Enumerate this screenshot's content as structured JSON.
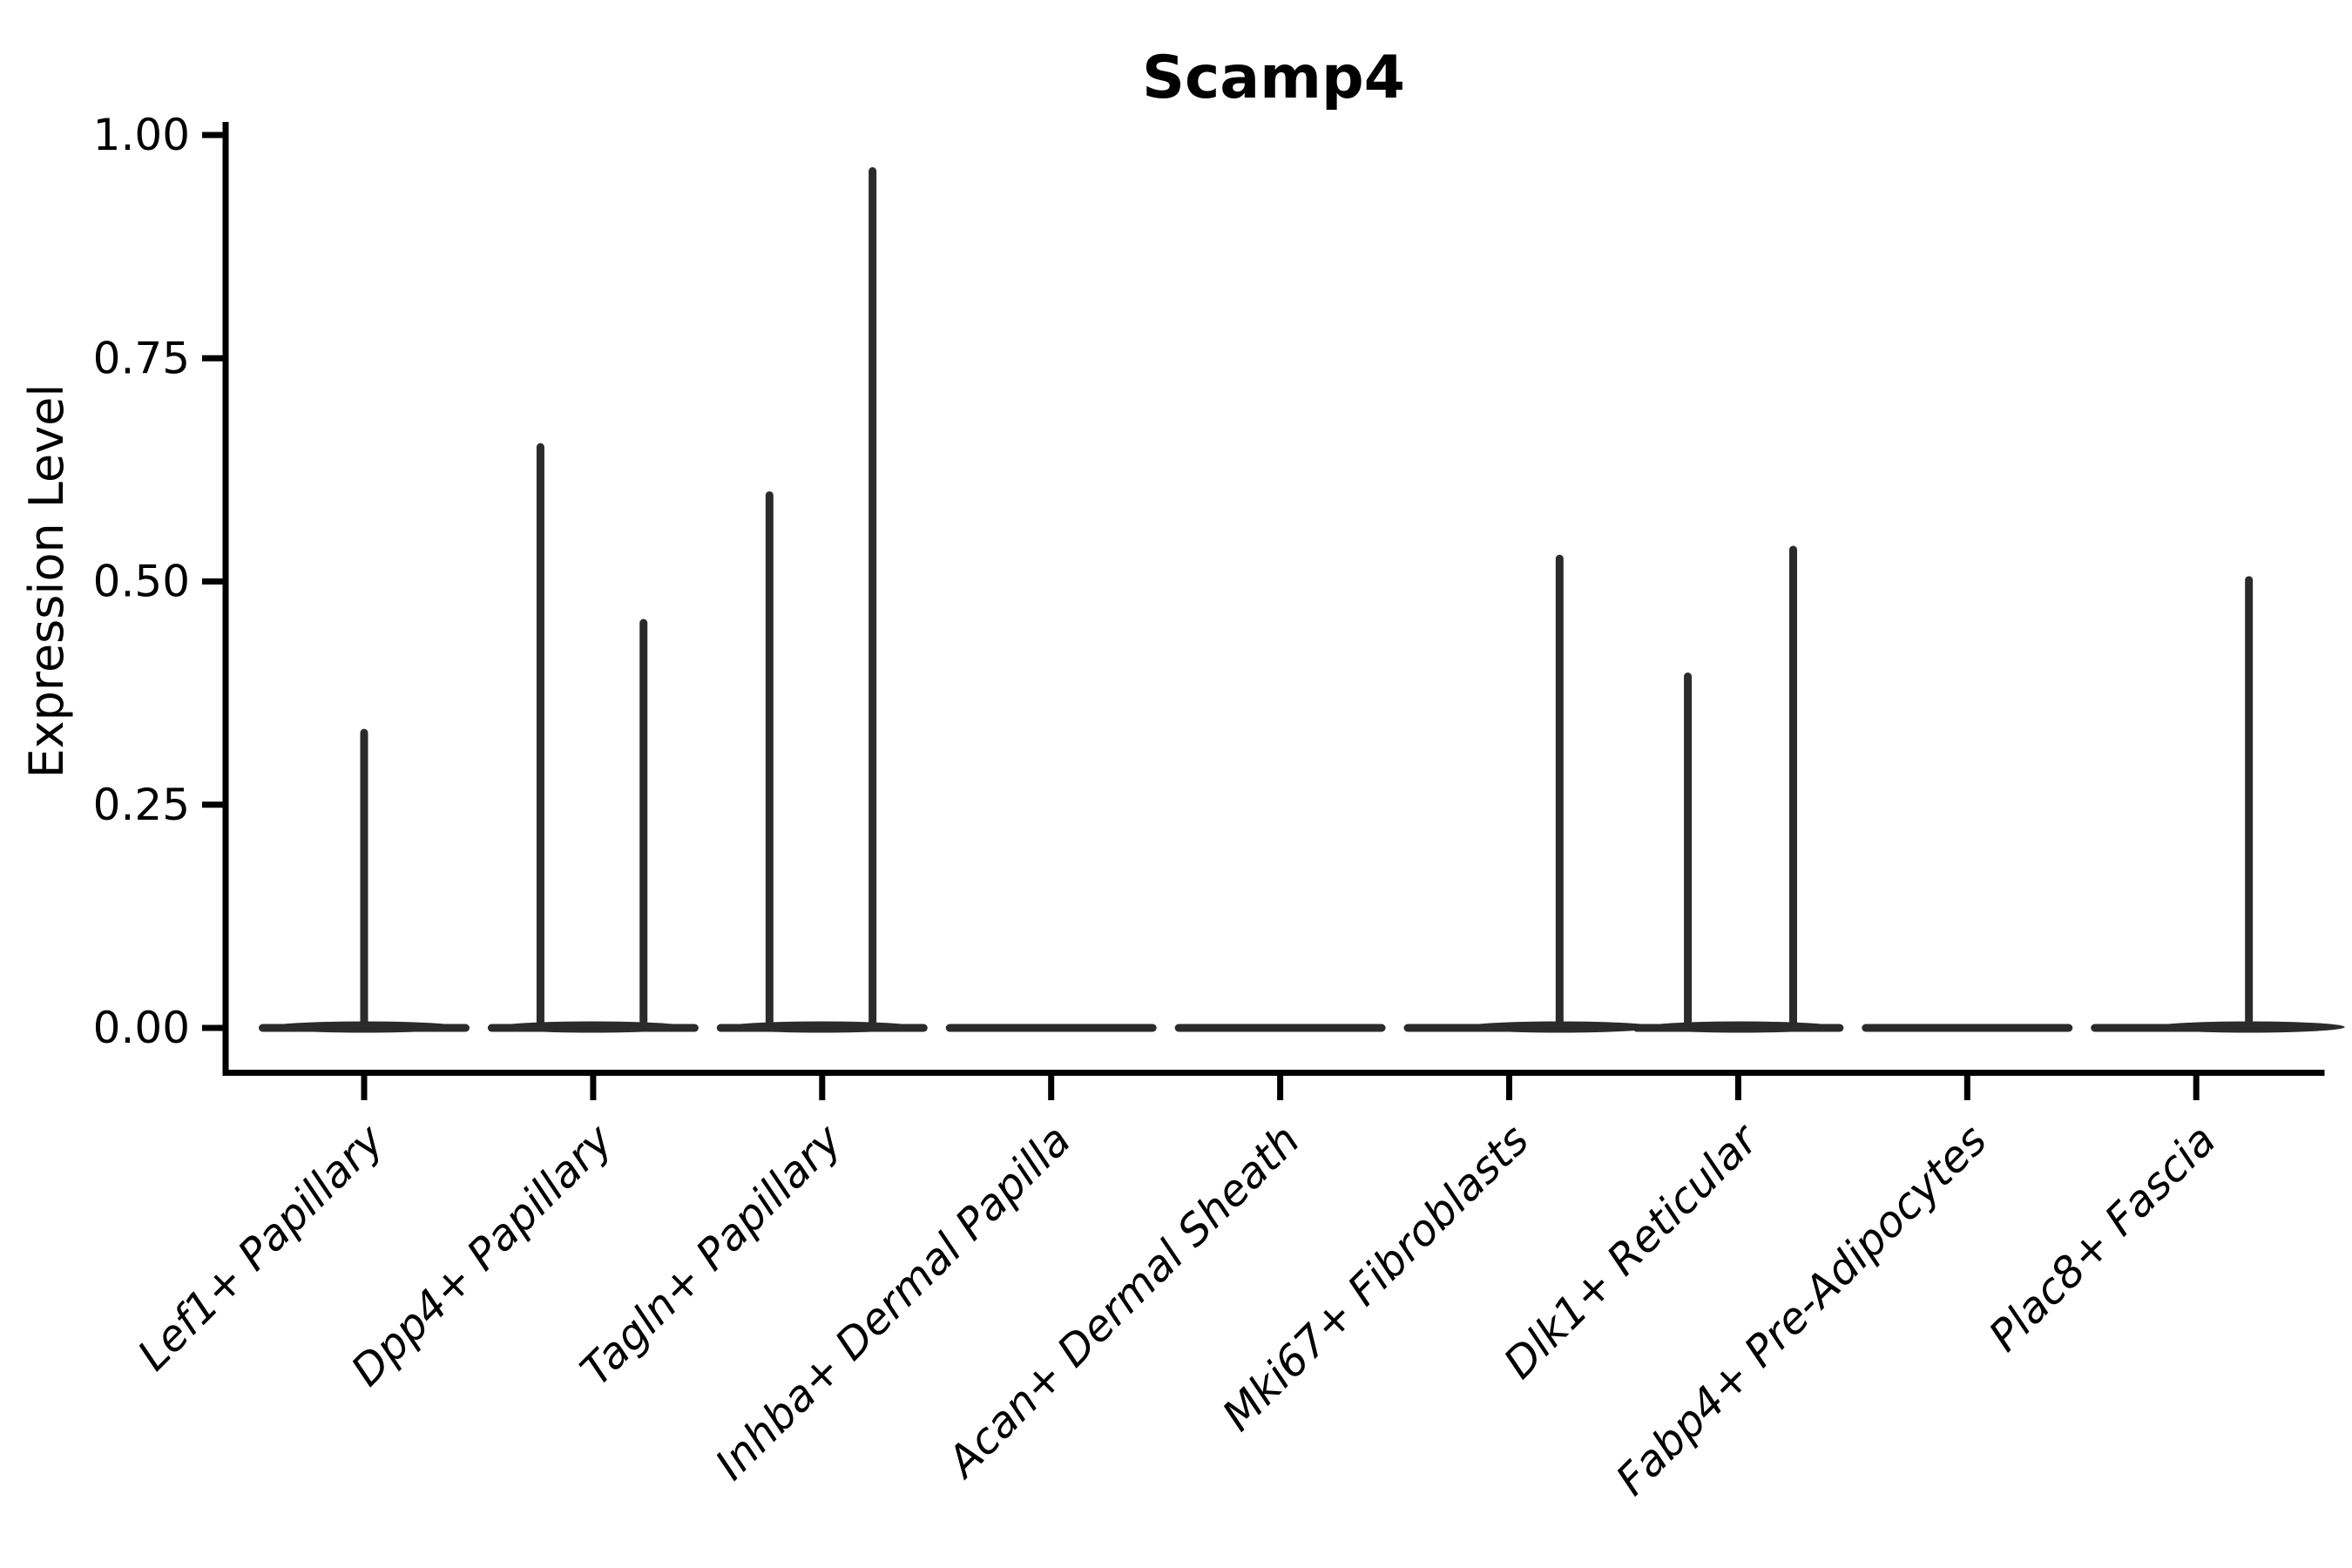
{
  "figure": {
    "background": "#ffffff"
  },
  "chart_data": {
    "type": "violin",
    "title": "Scamp4",
    "ylabel": "Expression Level",
    "xlabel": "",
    "ylim": [
      0.0,
      1.0
    ],
    "grid": false,
    "legend": null,
    "violin_color": "#2b2b2b",
    "axis_color": "#000000",
    "y_ticks": [
      {
        "value": 0.0,
        "label": "0.00"
      },
      {
        "value": 0.25,
        "label": "0.25"
      },
      {
        "value": 0.5,
        "label": "0.50"
      },
      {
        "value": 0.75,
        "label": "0.75"
      },
      {
        "value": 1.0,
        "label": "1.00"
      }
    ],
    "categories": [
      "Lef1+ Papillary",
      "Dpp4+ Papillary",
      "Tagln+ Papillary",
      "Inhba+ Dermal Papilla",
      "Acan+ Dermal Sheath",
      "Mki67+ Fibroblasts",
      "Dlk1+ Reticular",
      "Fabp4+ Pre-Adipocytes",
      "Plac8+ Fascia"
    ],
    "violins": [
      {
        "category": "Lef1+ Papillary",
        "base_value": 0.0,
        "max_points": [
          {
            "x_offset": 0.0,
            "value": 0.335
          }
        ]
      },
      {
        "category": "Dpp4+ Papillary",
        "base_value": 0.0,
        "max_points": [
          {
            "x_offset": -0.23,
            "value": 0.655
          },
          {
            "x_offset": 0.22,
            "value": 0.458
          }
        ]
      },
      {
        "category": "Tagln+ Papillary",
        "base_value": 0.0,
        "max_points": [
          {
            "x_offset": -0.23,
            "value": 0.601
          },
          {
            "x_offset": 0.22,
            "value": 0.964
          }
        ]
      },
      {
        "category": "Inhba+ Dermal Papilla",
        "base_value": 0.0,
        "max_points": []
      },
      {
        "category": "Acan+ Dermal Sheath",
        "base_value": 0.0,
        "max_points": []
      },
      {
        "category": "Mki67+ Fibroblasts",
        "base_value": 0.0,
        "max_points": [
          {
            "x_offset": 0.22,
            "value": 0.53
          }
        ]
      },
      {
        "category": "Dlk1+ Reticular",
        "base_value": 0.0,
        "max_points": [
          {
            "x_offset": -0.22,
            "value": 0.398
          },
          {
            "x_offset": 0.24,
            "value": 0.54
          }
        ]
      },
      {
        "category": "Fabp4+ Pre-Adipocytes",
        "base_value": 0.0,
        "max_points": []
      },
      {
        "category": "Plac8+ Fascia",
        "base_value": 0.0,
        "max_points": [
          {
            "x_offset": 0.23,
            "value": 0.506
          }
        ]
      }
    ]
  }
}
